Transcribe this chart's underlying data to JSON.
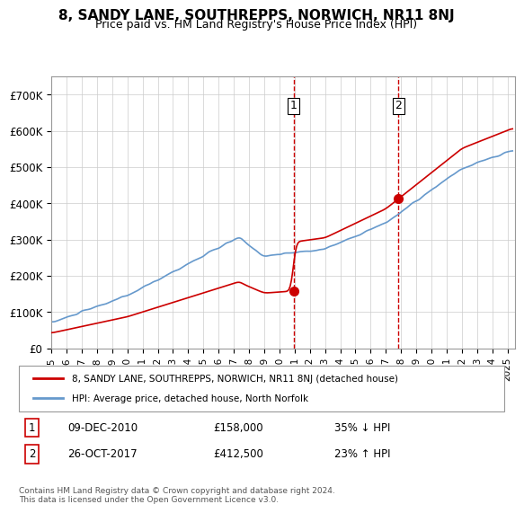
{
  "title": "8, SANDY LANE, SOUTHREPPS, NORWICH, NR11 8NJ",
  "subtitle": "Price paid vs. HM Land Registry's House Price Index (HPI)",
  "ylabel_ticks": [
    "£0",
    "£100K",
    "£200K",
    "£300K",
    "£400K",
    "£500K",
    "£600K",
    "£700K"
  ],
  "ytick_values": [
    0,
    100000,
    200000,
    300000,
    400000,
    500000,
    600000,
    700000
  ],
  "ylim": [
    0,
    750000
  ],
  "xlim_start": 1995.0,
  "xlim_end": 2025.5,
  "sale1_date": 2010.94,
  "sale1_price": 158000,
  "sale2_date": 2017.83,
  "sale2_price": 412500,
  "legend_property": "8, SANDY LANE, SOUTHREPPS, NORWICH, NR11 8NJ (detached house)",
  "legend_hpi": "HPI: Average price, detached house, North Norfolk",
  "table_row1": [
    "1",
    "09-DEC-2010",
    "£158,000",
    "35% ↓ HPI"
  ],
  "table_row2": [
    "2",
    "26-OCT-2017",
    "£412,500",
    "23% ↑ HPI"
  ],
  "footnote": "Contains HM Land Registry data © Crown copyright and database right 2024.\nThis data is licensed under the Open Government Licence v3.0.",
  "color_red": "#cc0000",
  "color_blue": "#6699cc",
  "color_grid": "#cccccc",
  "color_dashed": "#cc0000",
  "background": "#ffffff"
}
